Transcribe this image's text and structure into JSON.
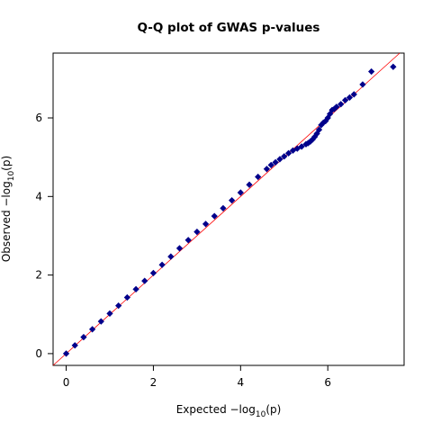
{
  "chart_data": {
    "type": "scatter",
    "title": "Q-Q plot of GWAS p-values",
    "xlabel": {
      "prefix": "Expected  −log",
      "sub": "10",
      "suffix": "(p)"
    },
    "ylabel": {
      "prefix": "Observed  −log",
      "sub": "10",
      "suffix": "(p)"
    },
    "xlim": [
      -0.3,
      7.75
    ],
    "ylim": [
      -0.3,
      7.65
    ],
    "xticks": [
      {
        "value": 0,
        "label": "0"
      },
      {
        "value": 2,
        "label": "2"
      },
      {
        "value": 4,
        "label": "4"
      },
      {
        "value": 6,
        "label": "6"
      }
    ],
    "yticks": [
      {
        "value": 0,
        "label": "0"
      },
      {
        "value": 2,
        "label": "2"
      },
      {
        "value": 4,
        "label": "4"
      },
      {
        "value": 6,
        "label": "6"
      }
    ],
    "reference_line": {
      "slope": 1,
      "intercept": 0,
      "color": "#ff0000"
    },
    "point_color": "#00008b",
    "marker": "diamond",
    "grid": false,
    "legend": "none",
    "series": [
      {
        "x": [
          0.0,
          0.2,
          0.4,
          0.6,
          0.8,
          1.0,
          1.2,
          1.4,
          1.6,
          1.8,
          2.0,
          2.2,
          2.4,
          2.6,
          2.8,
          3.0,
          3.2,
          3.4,
          3.6,
          3.8,
          4.0,
          4.2,
          4.4,
          4.6,
          4.7,
          4.8,
          4.9,
          5.0,
          5.1,
          5.2,
          5.3,
          5.4,
          5.5,
          5.55,
          5.6,
          5.65,
          5.7,
          5.75,
          5.8,
          5.85,
          5.9,
          5.95,
          6.0,
          6.05,
          6.1,
          6.15,
          6.2,
          6.3,
          6.4,
          6.5,
          6.6,
          6.8,
          7.0,
          7.5
        ],
        "y": [
          0.0,
          0.21,
          0.42,
          0.62,
          0.82,
          1.02,
          1.22,
          1.43,
          1.64,
          1.85,
          2.05,
          2.26,
          2.47,
          2.68,
          2.89,
          3.1,
          3.3,
          3.5,
          3.7,
          3.9,
          4.1,
          4.3,
          4.5,
          4.7,
          4.8,
          4.87,
          4.95,
          5.02,
          5.1,
          5.17,
          5.22,
          5.27,
          5.33,
          5.36,
          5.4,
          5.45,
          5.52,
          5.6,
          5.7,
          5.82,
          5.88,
          5.92,
          6.0,
          6.1,
          6.2,
          6.23,
          6.28,
          6.35,
          6.45,
          6.52,
          6.6,
          6.85,
          7.18,
          7.3
        ]
      }
    ]
  }
}
